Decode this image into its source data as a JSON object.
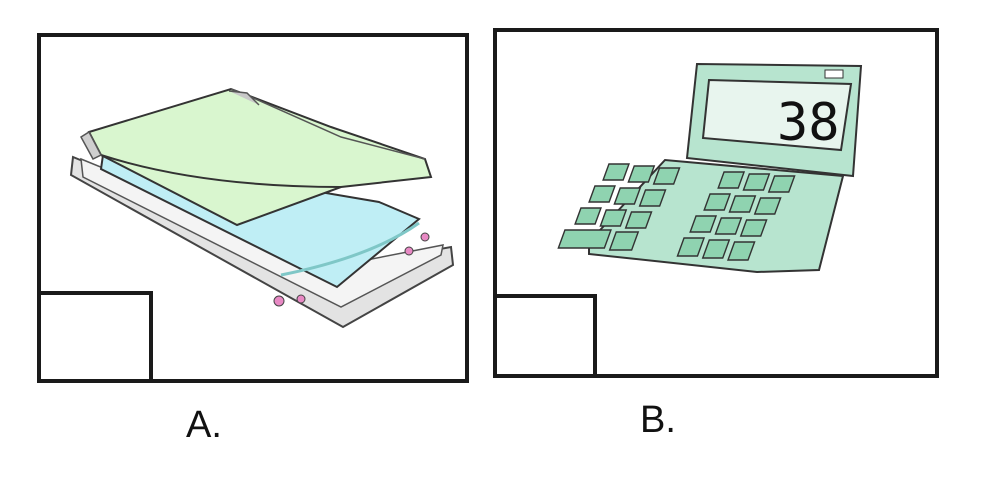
{
  "options": [
    {
      "label": "A.",
      "image_subject": "flatbed-scanner-icon"
    },
    {
      "label": "B.",
      "image_subject": "calculator-icon"
    }
  ],
  "calculator": {
    "display_value": "38"
  },
  "colors": {
    "border": "#1a1a1a",
    "scanner_lid": "#d9f6cf",
    "scanner_glass": "#bfeef5",
    "scanner_body": "#e3e3e3",
    "scanner_buttons": "#e889c4",
    "calculator_body": "#b7e4cf",
    "calculator_keys": "#8fd3b0"
  }
}
